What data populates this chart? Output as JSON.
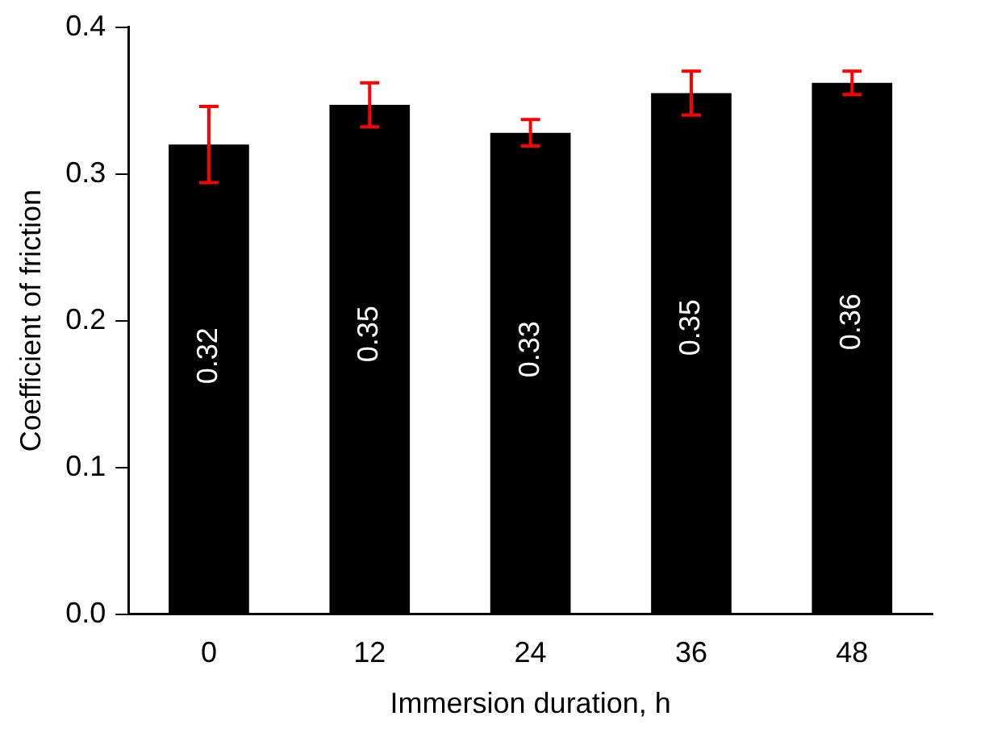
{
  "chart_data": {
    "type": "bar",
    "xlabel": "Immersion duration, h",
    "ylabel": "Coefficient of friction",
    "categories": [
      "0",
      "12",
      "24",
      "36",
      "48"
    ],
    "values": [
      0.32,
      0.347,
      0.328,
      0.355,
      0.362
    ],
    "errors": [
      0.026,
      0.015,
      0.009,
      0.015,
      0.008
    ],
    "value_labels": [
      "0.32",
      "0.35",
      "0.33",
      "0.35",
      "0.36"
    ],
    "color": "#000000",
    "ylim": [
      0,
      0.4
    ],
    "yticks": [
      {
        "value": 0,
        "label": "0.0"
      },
      {
        "value": 0.1,
        "label": "0.1"
      },
      {
        "value": 0.2,
        "label": "0.2"
      },
      {
        "value": 0.3,
        "label": "0.3"
      },
      {
        "value": 0.4,
        "label": "0.4"
      }
    ],
    "grid": false,
    "legend": false
  }
}
